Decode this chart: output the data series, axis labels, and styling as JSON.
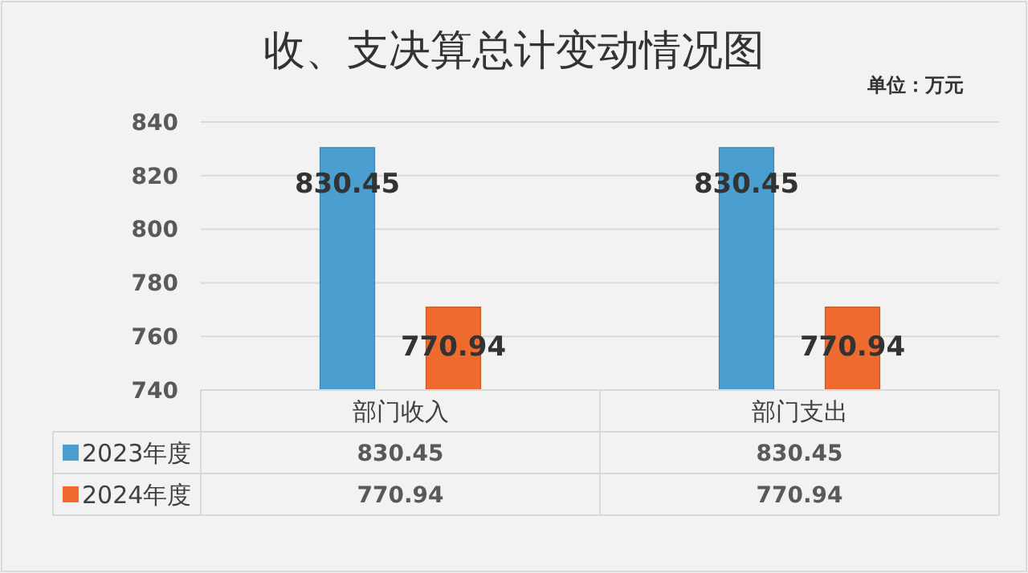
{
  "chart_data": {
    "type": "bar",
    "title": "收、支决算总计变动情况图",
    "annotations": [
      "单位：万元",
      "830.45",
      "830.45",
      "770.94",
      "770.94"
    ],
    "categories": [
      "部门收入",
      "部门支出"
    ],
    "series": [
      {
        "name": "2023年度",
        "color": "#4a9fd0",
        "values": [
          830.45,
          830.45
        ],
        "value_labels": [
          "830.45",
          "830.45"
        ]
      },
      {
        "name": "2024年度",
        "color": "#ee6a2f",
        "values": [
          770.94,
          770.94
        ],
        "value_labels": [
          "770.94",
          "770.94"
        ]
      }
    ],
    "ylim": [
      740,
      840
    ],
    "yticks": [
      740,
      760,
      780,
      800,
      820,
      840
    ],
    "grid": "y",
    "legend": "bottom"
  }
}
